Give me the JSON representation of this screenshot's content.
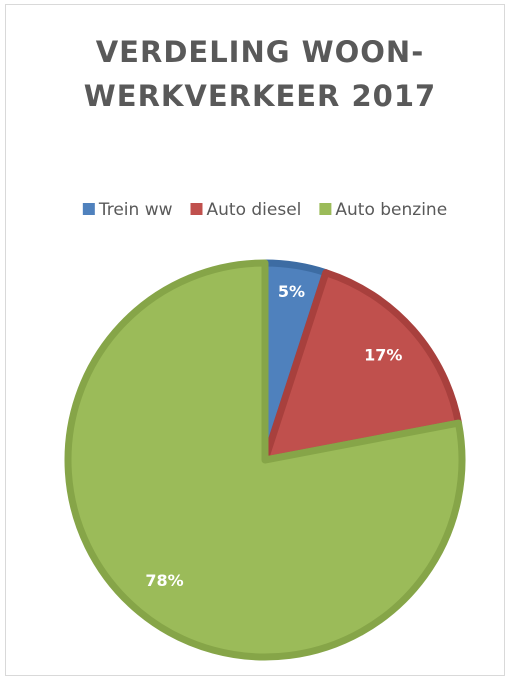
{
  "chart_data": {
    "type": "pie",
    "title": "VERDELING WOON-WERKVERKEER 2017",
    "categories": [
      "Trein ww",
      "Auto diesel",
      "Auto benzine"
    ],
    "values": [
      5,
      17,
      78
    ],
    "value_labels": [
      "5%",
      "17%",
      "78%"
    ],
    "colors": [
      "#4f81bd",
      "#c0504d",
      "#9bbb59"
    ],
    "edge_colors": [
      "#3d6ca3",
      "#a8403d",
      "#86a548"
    ],
    "legend": "top"
  }
}
